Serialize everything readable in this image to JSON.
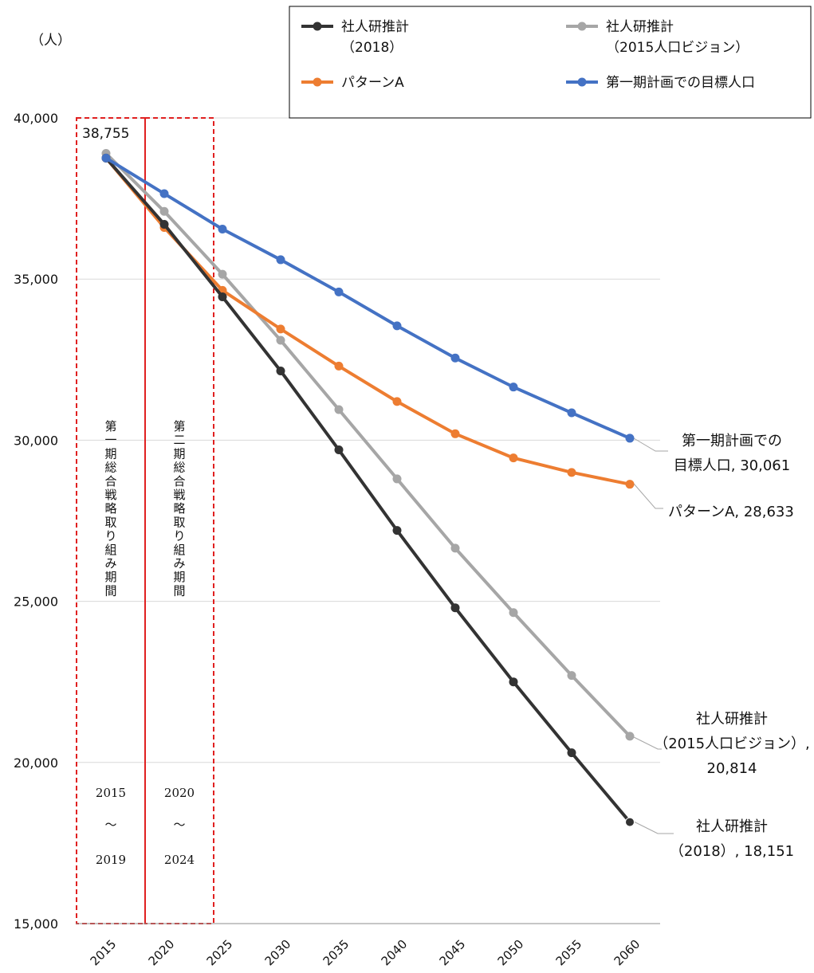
{
  "chart_data": {
    "type": "line",
    "unit_label": "（人）",
    "categories": [
      "2015",
      "2020",
      "2025",
      "2030",
      "2035",
      "2040",
      "2045",
      "2050",
      "2055",
      "2060"
    ],
    "ylim": [
      15000,
      40000
    ],
    "yticks": [
      15000,
      20000,
      25000,
      30000,
      35000,
      40000
    ],
    "ytick_labels": [
      "15,000",
      "20,000",
      "25,000",
      "30,000",
      "35,000",
      "40,000"
    ],
    "grid": true,
    "start_label": "38,755",
    "series": [
      {
        "name": "社人研推計\n（2018）",
        "color": "#333333",
        "values": [
          38755,
          36700,
          34450,
          32150,
          29700,
          27200,
          24800,
          22500,
          20300,
          18151
        ],
        "end_label": [
          "社人研推計",
          "（2018）, 18,151"
        ]
      },
      {
        "name": "社人研推計\n（2015人口ビジョン）",
        "color": "#a6a6a6",
        "values": [
          38900,
          37100,
          35150,
          33100,
          30950,
          28800,
          26650,
          24650,
          22700,
          20814
        ],
        "end_label": [
          "社人研推計",
          "（2015人口ビジョン）,",
          "20,814"
        ]
      },
      {
        "name": "パターンA",
        "color": "#ed7d31",
        "values": [
          38755,
          36600,
          34650,
          33450,
          32300,
          31200,
          30200,
          29450,
          29000,
          28633
        ],
        "end_label": [
          "パターンA, 28,633"
        ]
      },
      {
        "name": "第一期計画での目標人口",
        "color": "#4472c4",
        "values": [
          38755,
          37650,
          36550,
          35600,
          34600,
          33550,
          32550,
          31650,
          30850,
          30061
        ],
        "end_label": [
          "第一期計画での",
          "目標人口, 30,061"
        ]
      }
    ],
    "annotations": [
      {
        "text": "第一期総合戦略取り組み期間",
        "years": [
          "2015",
          "～",
          "2019"
        ]
      },
      {
        "text": "第二期総合戦略取り組み期間",
        "years": [
          "2020",
          "～",
          "2024"
        ]
      }
    ],
    "legend_position": "top-right"
  },
  "colors": {
    "grid": "#d9d9d9",
    "axis": "#8c8c8c",
    "period_box": "#e02020",
    "leader_line": "#a6a6a6",
    "legend_border": "#000000"
  }
}
